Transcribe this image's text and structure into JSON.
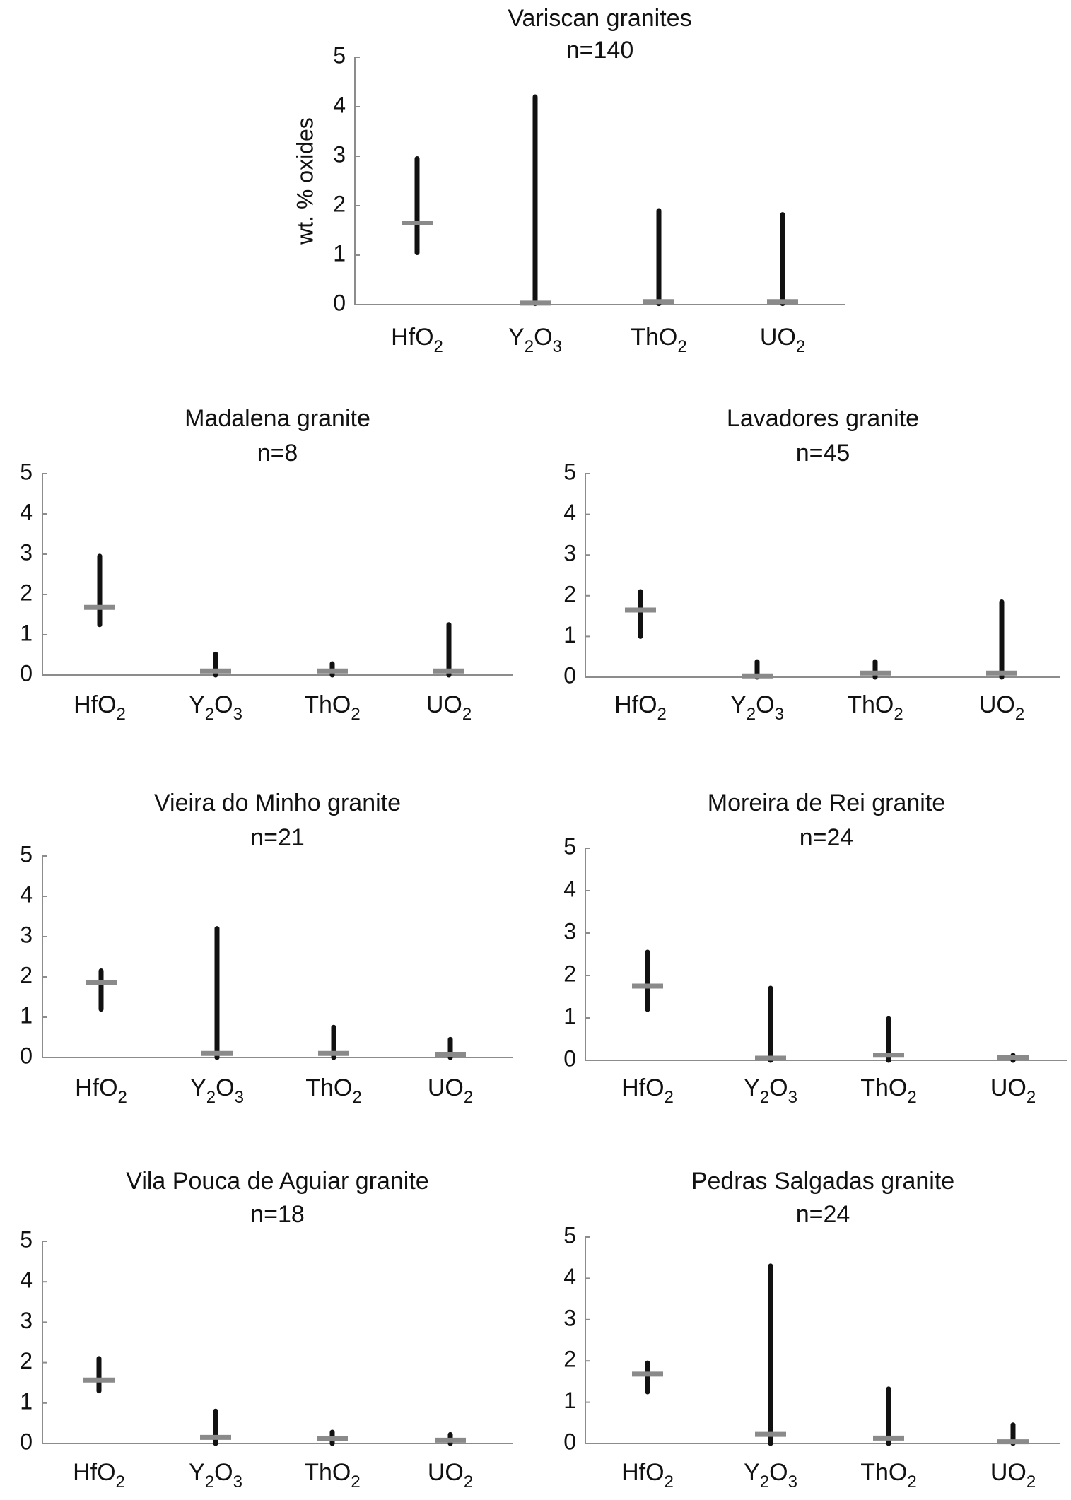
{
  "colors": {
    "range": "#111111",
    "median": "#8a8a8a",
    "axis": "#8c8c8c",
    "text": "#111111"
  },
  "chart_data": [
    {
      "type": "range",
      "title": "Variscan granites",
      "subtitle": "n=140",
      "ylabel": "wt. % oxides",
      "ylim": [
        0,
        5
      ],
      "yticks": [
        "0",
        "1",
        "2",
        "3",
        "4",
        "5"
      ],
      "categories": [
        {
          "base": "HfO",
          "sub": "2"
        },
        {
          "base": "Y",
          "sub": "2",
          "base2": "O",
          "sub2": "3"
        },
        {
          "base": "ThO",
          "sub": "2"
        },
        {
          "base": "UO",
          "sub": "2"
        }
      ],
      "min": [
        1.05,
        0.02,
        0.02,
        0.02
      ],
      "max": [
        2.95,
        4.2,
        1.9,
        1.82
      ],
      "median": [
        1.65,
        0.03,
        0.06,
        0.06
      ]
    },
    {
      "type": "range",
      "title": "Madalena granite",
      "subtitle": "n=8",
      "ylabel": "",
      "ylim": [
        0,
        5
      ],
      "yticks": [
        "0",
        "1",
        "2",
        "3",
        "4",
        "5"
      ],
      "categories": [
        {
          "base": "HfO",
          "sub": "2"
        },
        {
          "base": "Y",
          "sub": "2",
          "base2": "O",
          "sub2": "3"
        },
        {
          "base": "ThO",
          "sub": "2"
        },
        {
          "base": "UO",
          "sub": "2"
        }
      ],
      "min": [
        1.25,
        0.0,
        0.0,
        0.0
      ],
      "max": [
        2.95,
        0.52,
        0.28,
        1.25
      ],
      "median": [
        1.68,
        0.1,
        0.1,
        0.1
      ]
    },
    {
      "type": "range",
      "title": "Lavadores granite",
      "subtitle": "n=45",
      "ylabel": "",
      "ylim": [
        0,
        5
      ],
      "yticks": [
        "0",
        "1",
        "2",
        "3",
        "4",
        "5"
      ],
      "categories": [
        {
          "base": "HfO",
          "sub": "2"
        },
        {
          "base": "Y",
          "sub": "2",
          "base2": "O",
          "sub2": "3"
        },
        {
          "base": "ThO",
          "sub": "2"
        },
        {
          "base": "UO",
          "sub": "2"
        }
      ],
      "min": [
        1.0,
        0.0,
        0.0,
        0.0
      ],
      "max": [
        2.1,
        0.38,
        0.38,
        1.85
      ],
      "median": [
        1.65,
        0.03,
        0.1,
        0.1
      ]
    },
    {
      "type": "range",
      "title": "Vieira do Minho granite",
      "subtitle": "n=21",
      "ylabel": "",
      "ylim": [
        0,
        5
      ],
      "yticks": [
        "0",
        "1",
        "2",
        "3",
        "4",
        "5"
      ],
      "categories": [
        {
          "base": "HfO",
          "sub": "2"
        },
        {
          "base": "Y",
          "sub": "2",
          "base2": "O",
          "sub2": "3"
        },
        {
          "base": "ThO",
          "sub": "2"
        },
        {
          "base": "UO",
          "sub": "2"
        }
      ],
      "min": [
        1.2,
        0.0,
        0.0,
        0.0
      ],
      "max": [
        2.15,
        3.2,
        0.75,
        0.45
      ],
      "median": [
        1.85,
        0.1,
        0.1,
        0.08
      ]
    },
    {
      "type": "range",
      "title": "Moreira de Rei granite",
      "subtitle": "n=24",
      "ylabel": "",
      "ylim": [
        0,
        5
      ],
      "yticks": [
        "0",
        "1",
        "2",
        "3",
        "4",
        "5"
      ],
      "categories": [
        {
          "base": "HfO",
          "sub": "2"
        },
        {
          "base": "Y",
          "sub": "2",
          "base2": "O",
          "sub2": "3"
        },
        {
          "base": "ThO",
          "sub": "2"
        },
        {
          "base": "UO",
          "sub": "2"
        }
      ],
      "min": [
        1.2,
        0.0,
        0.0,
        0.0
      ],
      "max": [
        2.55,
        1.7,
        0.98,
        0.12
      ],
      "median": [
        1.75,
        0.05,
        0.12,
        0.06
      ]
    },
    {
      "type": "range",
      "title": "Vila Pouca de Aguiar granite",
      "subtitle": "n=18",
      "ylabel": "",
      "ylim": [
        0,
        5
      ],
      "yticks": [
        "0",
        "1",
        "2",
        "3",
        "4",
        "5"
      ],
      "categories": [
        {
          "base": "HfO",
          "sub": "2"
        },
        {
          "base": "Y",
          "sub": "2",
          "base2": "O",
          "sub2": "3"
        },
        {
          "base": "ThO",
          "sub": "2"
        },
        {
          "base": "UO",
          "sub": "2"
        }
      ],
      "min": [
        1.3,
        0.0,
        0.0,
        0.0
      ],
      "max": [
        2.1,
        0.8,
        0.28,
        0.22
      ],
      "median": [
        1.57,
        0.15,
        0.13,
        0.08
      ]
    },
    {
      "type": "range",
      "title": "Pedras Salgadas granite",
      "subtitle": "n=24",
      "ylabel": "",
      "ylim": [
        0,
        5
      ],
      "yticks": [
        "0",
        "1",
        "2",
        "3",
        "4",
        "5"
      ],
      "categories": [
        {
          "base": "HfO",
          "sub": "2"
        },
        {
          "base": "Y",
          "sub": "2",
          "base2": "O",
          "sub2": "3"
        },
        {
          "base": "ThO",
          "sub": "2"
        },
        {
          "base": "UO",
          "sub": "2"
        }
      ],
      "min": [
        1.25,
        0.0,
        0.0,
        0.0
      ],
      "max": [
        1.95,
        4.3,
        1.32,
        0.45
      ],
      "median": [
        1.68,
        0.22,
        0.13,
        0.04
      ]
    }
  ]
}
